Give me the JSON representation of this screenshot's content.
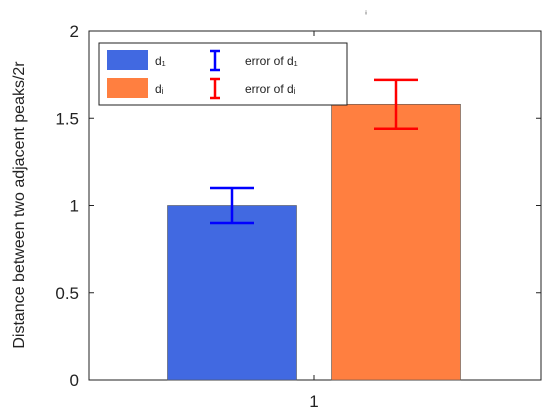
{
  "chart_data": {
    "type": "bar",
    "title": "ⁱ",
    "ylabel": "Distance between two adjacent peaks/2r",
    "xlabel": "",
    "categories": [
      "1"
    ],
    "ylim": [
      0,
      2
    ],
    "yticks": [
      "0",
      "0.5",
      "1",
      "1.5",
      "2"
    ],
    "grid": false,
    "legend_position": "top-left",
    "series": [
      {
        "name": "d₁",
        "value": 1.0,
        "error": 0.1,
        "color": "#4169E1"
      },
      {
        "name": "dᵢ",
        "value": 1.58,
        "error": 0.14,
        "color": "#FF7F40"
      }
    ],
    "error_series": [
      {
        "name": "error of d₁",
        "color": "#0000FF"
      },
      {
        "name": "error of dᵢ",
        "color": "#FF0000"
      }
    ]
  }
}
